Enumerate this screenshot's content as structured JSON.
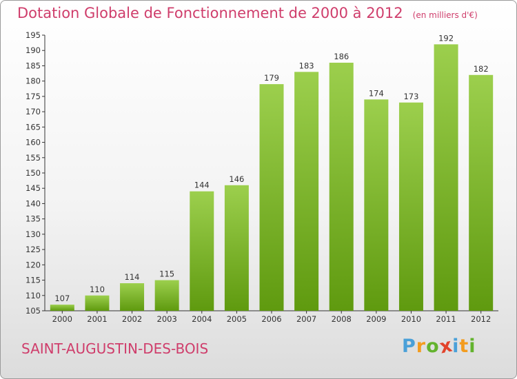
{
  "chart_data": {
    "type": "bar",
    "title": "Dotation Globale de Fonctionnement de 2000 à 2012",
    "subtitle": "(en milliers d'€)",
    "categories": [
      "2000",
      "2001",
      "2002",
      "2003",
      "2004",
      "2005",
      "2006",
      "2007",
      "2008",
      "2009",
      "2010",
      "2011",
      "2012"
    ],
    "values": [
      107,
      110,
      114,
      115,
      144,
      146,
      179,
      183,
      186,
      174,
      173,
      192,
      182
    ],
    "ylim": [
      105,
      195
    ],
    "yticks": [
      105,
      110,
      115,
      120,
      125,
      130,
      135,
      140,
      145,
      150,
      155,
      160,
      165,
      170,
      175,
      180,
      185,
      190,
      195
    ],
    "grid": false,
    "colors": {
      "bar_top": "#9ccf4d",
      "bar_bottom": "#5f9a0f",
      "title": "#cf3d6b"
    }
  },
  "place_name": "SAINT-AUGUSTIN-DES-BOIS",
  "logo": {
    "letters": [
      "P",
      "r",
      "o",
      "x",
      "i",
      "t",
      "i"
    ],
    "colors": [
      "#4aa0d8",
      "#f39c1f",
      "#63b32e",
      "#e2432b",
      "#4aa0d8",
      "#f39c1f",
      "#63b32e"
    ]
  }
}
